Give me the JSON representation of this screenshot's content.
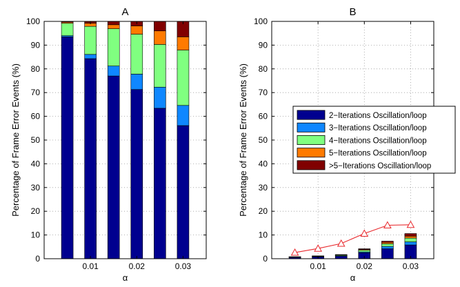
{
  "chart_data": [
    {
      "type": "bar",
      "stacked": true,
      "title": "A",
      "xlabel": "α",
      "ylabel": "Percentage of Frame Error Events (%)",
      "x": [
        0.005,
        0.01,
        0.015,
        0.02,
        0.025,
        0.03
      ],
      "xlim": [
        0,
        0.035
      ],
      "ylim": [
        0,
        100
      ],
      "xticks": [
        0.01,
        0.02,
        0.03
      ],
      "xtick_labels": [
        "0.01",
        "0.02",
        "0.03"
      ],
      "yticks": [
        0,
        10,
        20,
        30,
        40,
        50,
        60,
        70,
        80,
        90,
        100
      ],
      "grid": true,
      "series": [
        {
          "name": "2−Iterations Oscillation/loop",
          "color": "#00008f",
          "values": [
            93.5,
            84.3,
            77.0,
            71.3,
            63.4,
            56.1
          ]
        },
        {
          "name": "3−Iterations Oscillation/loop",
          "color": "#0f87ff",
          "values": [
            0.5,
            1.8,
            4.2,
            6.5,
            8.9,
            8.5
          ]
        },
        {
          "name": "4−Iterations Oscillation/loop",
          "color": "#80ff80",
          "values": [
            5.2,
            11.8,
            15.7,
            16.8,
            18.0,
            23.3
          ]
        },
        {
          "name": "5−Iterations Oscillation/loop",
          "color": "#ff7a00",
          "values": [
            0.5,
            1.3,
            1.7,
            3.5,
            5.7,
            5.6
          ]
        },
        {
          "name": ">5−Iterations Oscillation/loop",
          "color": "#800000",
          "values": [
            0.3,
            0.8,
            1.4,
            1.9,
            4.0,
            6.5
          ]
        }
      ]
    },
    {
      "type": "bar",
      "stacked": true,
      "title": "B",
      "xlabel": "α",
      "ylabel": "Percentage of Frame Error Events (%)",
      "x": [
        0.005,
        0.01,
        0.015,
        0.02,
        0.025,
        0.03
      ],
      "xlim": [
        0,
        0.035
      ],
      "ylim": [
        0,
        100
      ],
      "xticks": [
        0.01,
        0.02,
        0.03
      ],
      "xtick_labels": [
        "0.01",
        "0.02",
        "0.03"
      ],
      "yticks": [
        0,
        10,
        20,
        30,
        40,
        50,
        60,
        70,
        80,
        90,
        100
      ],
      "grid": true,
      "legend_position": "center-right",
      "series": [
        {
          "name": "2−Iterations Oscillation/loop",
          "color": "#00008f",
          "values": [
            0.6,
            0.8,
            1.1,
            2.5,
            4.2,
            5.8
          ]
        },
        {
          "name": "3−Iterations Oscillation/loop",
          "color": "#0f87ff",
          "values": [
            0.05,
            0.1,
            0.15,
            0.4,
            1.0,
            1.3
          ]
        },
        {
          "name": "4−Iterations Oscillation/loop",
          "color": "#80ff80",
          "values": [
            0.1,
            0.2,
            0.3,
            0.7,
            1.1,
            1.6
          ]
        },
        {
          "name": "5−Iterations Oscillation/loop",
          "color": "#ff7a00",
          "values": [
            0.05,
            0.05,
            0.1,
            0.3,
            0.6,
            0.8
          ]
        },
        {
          "name": ">5−Iterations Oscillation/loop",
          "color": "#800000",
          "values": [
            0.05,
            0.05,
            0.1,
            0.3,
            0.5,
            1.1
          ]
        }
      ],
      "line_series": {
        "color": "#e8272b",
        "marker": "triangle",
        "x": [
          0.005,
          0.01,
          0.015,
          0.02,
          0.025,
          0.03
        ],
        "values": [
          2.6,
          4.3,
          6.4,
          10.6,
          14.1,
          14.3
        ]
      }
    }
  ]
}
